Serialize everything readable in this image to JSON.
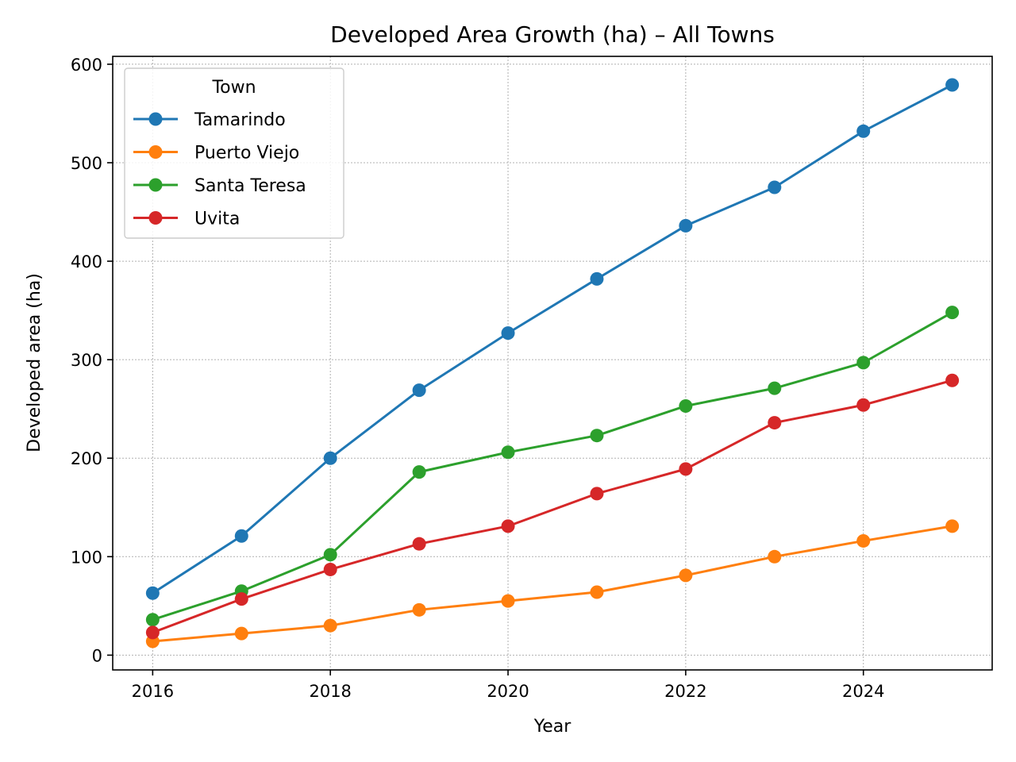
{
  "chart_data": {
    "type": "line",
    "title": "Developed Area Growth (ha) – All Towns",
    "xlabel": "Year",
    "ylabel": "Developed area (ha)",
    "x": [
      2016,
      2017,
      2018,
      2019,
      2020,
      2021,
      2022,
      2023,
      2024,
      2025
    ],
    "xlim": [
      2015.55,
      2025.45
    ],
    "ylim": [
      -15,
      608
    ],
    "xticks": [
      2016,
      2018,
      2020,
      2022,
      2024
    ],
    "yticks": [
      0,
      100,
      200,
      300,
      400,
      500,
      600
    ],
    "grid": true,
    "legend": {
      "title": "Town",
      "placement": "upper-left"
    },
    "series": [
      {
        "name": "Tamarindo",
        "color": "#1f77b4",
        "values": [
          63,
          121,
          200,
          269,
          327,
          382,
          436,
          475,
          532,
          579
        ]
      },
      {
        "name": "Puerto Viejo",
        "color": "#ff7f0e",
        "values": [
          14,
          22,
          30,
          46,
          55,
          64,
          81,
          100,
          116,
          131
        ]
      },
      {
        "name": "Santa Teresa",
        "color": "#2ca02c",
        "values": [
          36,
          65,
          102,
          186,
          206,
          223,
          253,
          271,
          297,
          348
        ]
      },
      {
        "name": "Uvita",
        "color": "#d62728",
        "values": [
          23,
          57,
          87,
          113,
          131,
          164,
          189,
          236,
          254,
          279
        ]
      }
    ]
  }
}
